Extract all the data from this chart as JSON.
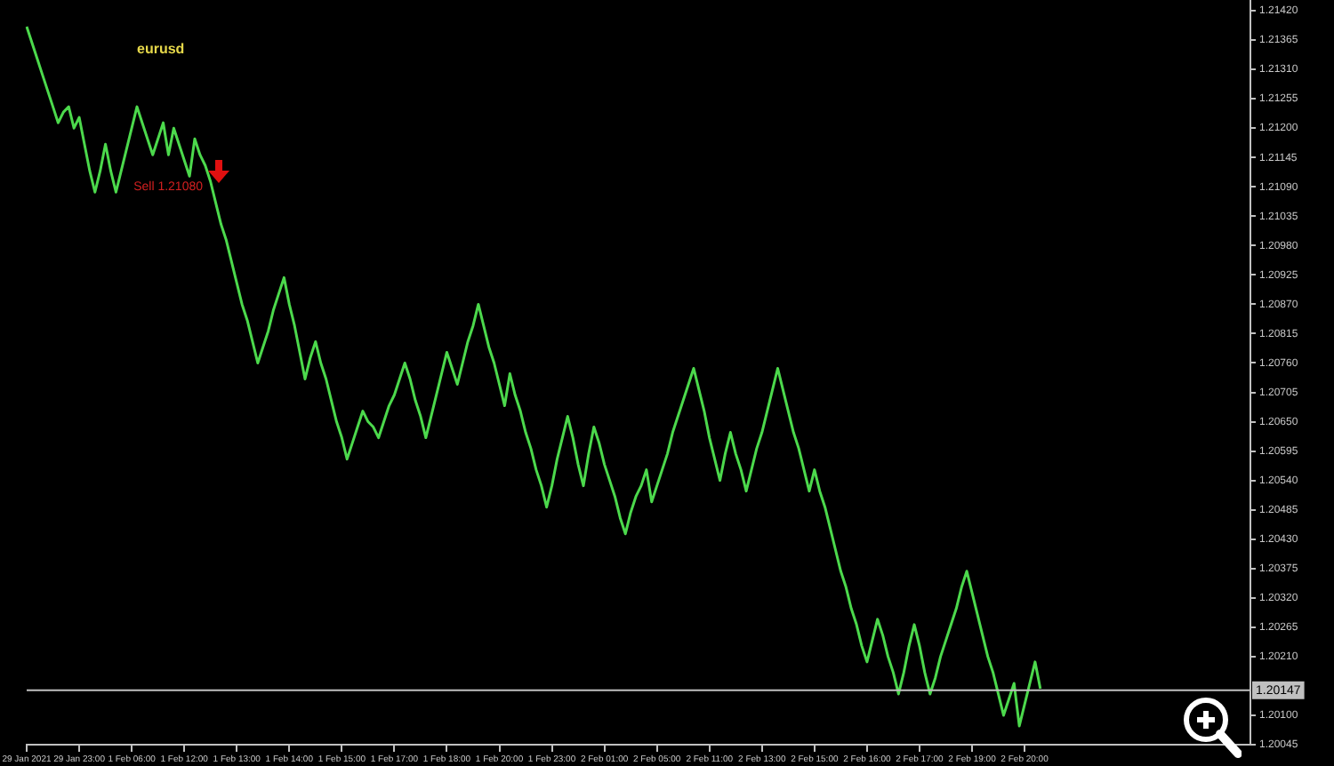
{
  "chart_data": {
    "type": "line",
    "title": "eurusd",
    "categories": [
      "29 Jan 2021",
      null,
      null,
      null,
      null,
      null,
      null,
      null,
      null,
      null,
      "29 Jan 23:00",
      null,
      null,
      null,
      null,
      null,
      null,
      null,
      null,
      null,
      "1 Feb 06:00",
      null,
      null,
      null,
      null,
      null,
      null,
      null,
      null,
      null,
      "1 Feb 12:00",
      null,
      null,
      null,
      null,
      null,
      null,
      null,
      null,
      null,
      "1 Feb 13:00",
      null,
      null,
      null,
      null,
      null,
      null,
      null,
      null,
      null,
      "1 Feb 14:00",
      null,
      null,
      null,
      null,
      null,
      null,
      null,
      null,
      null,
      "1 Feb 15:00",
      null,
      null,
      null,
      null,
      null,
      null,
      null,
      null,
      null,
      "1 Feb 17:00",
      null,
      null,
      null,
      null,
      null,
      null,
      null,
      null,
      null,
      "1 Feb 18:00",
      null,
      null,
      null,
      null,
      null,
      null,
      null,
      null,
      null,
      "1 Feb 20:00",
      null,
      null,
      null,
      null,
      null,
      null,
      null,
      null,
      null,
      "1 Feb 23:00",
      null,
      null,
      null,
      null,
      null,
      null,
      null,
      null,
      null,
      "2 Feb 01:00",
      null,
      null,
      null,
      null,
      null,
      null,
      null,
      null,
      null,
      "2 Feb 05:00",
      null,
      null,
      null,
      null,
      null,
      null,
      null,
      null,
      null,
      "2 Feb 11:00",
      null,
      null,
      null,
      null,
      null,
      null,
      null,
      null,
      null,
      "2 Feb 13:00",
      null,
      null,
      null,
      null,
      null,
      null,
      null,
      null,
      null,
      "2 Feb 15:00",
      null,
      null,
      null,
      null,
      null,
      null,
      null,
      null,
      null,
      "2 Feb 16:00",
      null,
      null,
      null,
      null,
      null,
      null,
      null,
      null,
      null,
      "2 Feb 17:00",
      null,
      null,
      null,
      null,
      null,
      null,
      null,
      null,
      null,
      "2 Feb 19:00",
      null,
      null,
      null,
      null,
      null,
      null,
      null,
      null,
      null,
      "2 Feb 20:00",
      null,
      null,
      null,
      null,
      null,
      null,
      null,
      null,
      null,
      null,
      null,
      null,
      null,
      null,
      null,
      null,
      null,
      null,
      null,
      null,
      null,
      null,
      null,
      null,
      null,
      null,
      null,
      null,
      null,
      null,
      null,
      null,
      null,
      null,
      null,
      null,
      null,
      null,
      null,
      null,
      null,
      null,
      null
    ],
    "series": [
      {
        "color": "#4cd94c",
        "values": [
          1.2139,
          1.2136,
          1.2133,
          1.213,
          1.2127,
          1.2124,
          1.2121,
          1.2123,
          1.2124,
          1.212,
          1.2122,
          1.2117,
          1.2112,
          1.2108,
          1.2112,
          1.2117,
          1.2112,
          1.2108,
          1.2112,
          1.2116,
          1.212,
          1.2124,
          1.2121,
          1.2118,
          1.2115,
          1.2118,
          1.2121,
          1.2115,
          1.212,
          1.2117,
          1.2114,
          1.2111,
          1.2118,
          1.2115,
          1.2113,
          1.211,
          1.2106,
          1.2102,
          1.2099,
          1.2095,
          1.2091,
          1.2087,
          1.2084,
          1.208,
          1.2076,
          1.2079,
          1.2082,
          1.2086,
          1.2089,
          1.2092,
          1.2087,
          1.2083,
          1.2078,
          1.2073,
          1.2077,
          1.208,
          1.2076,
          1.2073,
          1.2069,
          1.2065,
          1.2062,
          1.2058,
          1.2061,
          1.2064,
          1.2067,
          1.2065,
          1.2064,
          1.2062,
          1.2065,
          1.2068,
          1.207,
          1.2073,
          1.2076,
          1.2073,
          1.2069,
          1.2066,
          1.2062,
          1.2066,
          1.207,
          1.2074,
          1.2078,
          1.2075,
          1.2072,
          1.2076,
          1.208,
          1.2083,
          1.2087,
          1.2083,
          1.2079,
          1.2076,
          1.2072,
          1.2068,
          1.2074,
          1.207,
          1.2067,
          1.2063,
          1.206,
          1.2056,
          1.2053,
          1.2049,
          1.2053,
          1.2058,
          1.2062,
          1.2066,
          1.2062,
          1.2057,
          1.2053,
          1.2059,
          1.2064,
          1.2061,
          1.2057,
          1.2054,
          1.2051,
          1.2047,
          1.2044,
          1.2048,
          1.2051,
          1.2053,
          1.2056,
          1.205,
          1.2053,
          1.2056,
          1.2059,
          1.2063,
          1.2066,
          1.2069,
          1.2072,
          1.2075,
          1.2071,
          1.2067,
          1.2062,
          1.2058,
          1.2054,
          1.2059,
          1.2063,
          1.2059,
          1.2056,
          1.2052,
          1.2056,
          1.206,
          1.2063,
          1.2067,
          1.2071,
          1.2075,
          1.2071,
          1.2067,
          1.2063,
          1.206,
          1.2056,
          1.2052,
          1.2056,
          1.2052,
          1.2049,
          1.2045,
          1.2041,
          1.2037,
          1.2034,
          1.203,
          1.2027,
          1.2023,
          1.202,
          1.2024,
          1.2028,
          1.2025,
          1.2021,
          1.2018,
          1.2014,
          1.2018,
          1.2023,
          1.2027,
          1.2023,
          1.2018,
          1.2014,
          1.2017,
          1.2021,
          1.2024,
          1.2027,
          1.203,
          1.2034,
          1.2037,
          1.2033,
          1.2029,
          1.2025,
          1.2021,
          1.2018,
          1.2014,
          1.201,
          1.2013,
          1.2016,
          1.2008,
          1.2012,
          1.2016,
          1.202,
          1.2015,
          null,
          null,
          null,
          null,
          null,
          null,
          null,
          null,
          null,
          null,
          null,
          null,
          null,
          null,
          null,
          null,
          null,
          null,
          null,
          null,
          null,
          null,
          null,
          null,
          null,
          null,
          null,
          null,
          null,
          null,
          null,
          null,
          null,
          null,
          null,
          null,
          null,
          null,
          null,
          null
        ]
      }
    ],
    "ylim": [
      1.20045,
      1.2144
    ],
    "yticks": [
      {
        "value": 1.20045,
        "label": "1.20045"
      },
      {
        "value": 1.201,
        "label": "1.20100"
      },
      {
        "value": 1.2021,
        "label": "1.20210"
      },
      {
        "value": 1.20265,
        "label": "1.20265"
      },
      {
        "value": 1.2032,
        "label": "1.20320"
      },
      {
        "value": 1.20375,
        "label": "1.20375"
      },
      {
        "value": 1.2043,
        "label": "1.20430"
      },
      {
        "value": 1.20485,
        "label": "1.20485"
      },
      {
        "value": 1.2054,
        "label": "1.20540"
      },
      {
        "value": 1.20595,
        "label": "1.20595"
      },
      {
        "value": 1.2065,
        "label": "1.20650"
      },
      {
        "value": 1.20705,
        "label": "1.20705"
      },
      {
        "value": 1.2076,
        "label": "1.20760"
      },
      {
        "value": 1.20815,
        "label": "1.20815"
      },
      {
        "value": 1.2087,
        "label": "1.20870"
      },
      {
        "value": 1.20925,
        "label": "1.20925"
      },
      {
        "value": 1.2098,
        "label": "1.20980"
      },
      {
        "value": 1.21035,
        "label": "1.21035"
      },
      {
        "value": 1.2109,
        "label": "1.21090"
      },
      {
        "value": 1.21145,
        "label": "1.21145"
      },
      {
        "value": 1.212,
        "label": "1.21200"
      },
      {
        "value": 1.21255,
        "label": "1.21255"
      },
      {
        "value": 1.2131,
        "label": "1.21310"
      },
      {
        "value": 1.21365,
        "label": "1.21365"
      },
      {
        "value": 1.2142,
        "label": "1.21420"
      }
    ],
    "ref_lines": [
      {
        "axis": "y",
        "value": 1.20147,
        "label": "1.20147",
        "color": "#c0c0c0"
      }
    ],
    "annotations": [
      "Sell 1.21080"
    ],
    "grid": false,
    "legend": false,
    "marker": "none",
    "line_style": "solid"
  }
}
